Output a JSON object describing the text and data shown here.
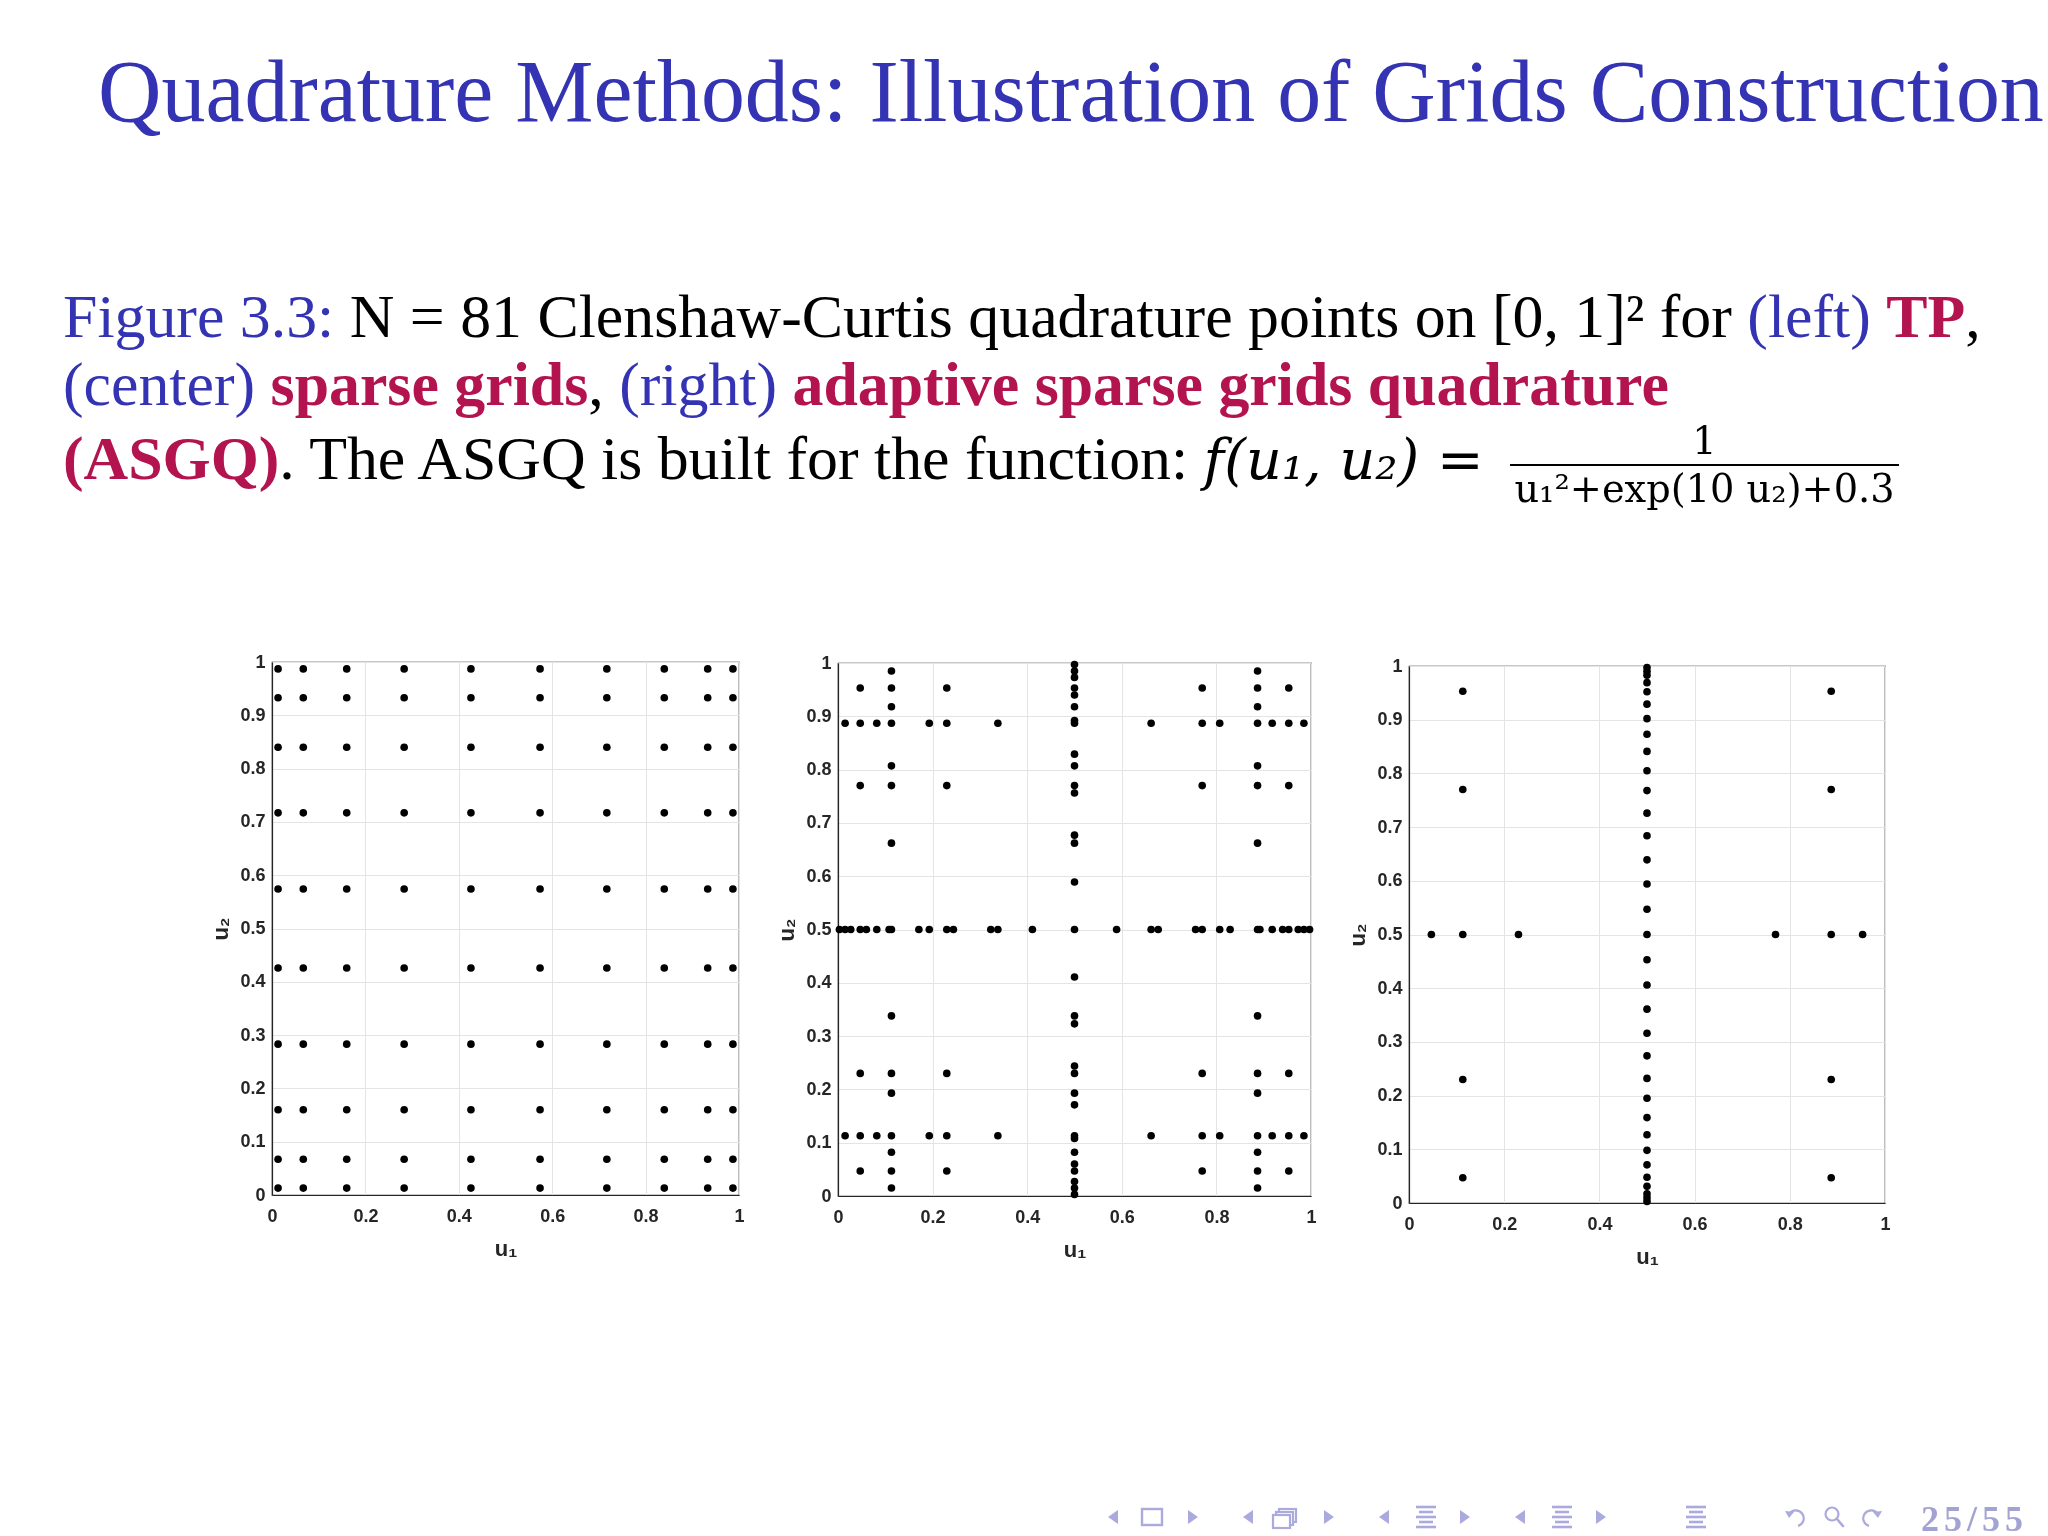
{
  "chart_data": [
    {
      "type": "other",
      "title": "Quadrature Methods: Illustration of Grids Construction",
      "annotations": [
        "Figure 3.3:",
        "N = 81 Clenshaw-Curtis quadrature points on [0, 1]² for",
        "(left)",
        "TP",
        ",",
        "(center)",
        "sparse grids",
        ",",
        "(right)",
        "adaptive sparse grids quadrature",
        "(ASGQ)",
        ". The ASGQ is built for the function:",
        "f(u₁, u₂) =",
        "1",
        "u₁²+exp(10 u₂)+0.3",
        "25/55"
      ]
    },
    {
      "type": "scatter",
      "color": "#000000",
      "marker": "circle",
      "xlabel": "u₁",
      "ylabel": "u₂",
      "xlim": [
        0,
        1
      ],
      "ylim": [
        0,
        1
      ],
      "xticks": [
        0,
        0.2,
        0.4,
        0.6,
        0.8,
        1
      ],
      "yticks": [
        0,
        0.1,
        0.2,
        0.3,
        0.4,
        0.5,
        0.6,
        0.7,
        0.8,
        0.9,
        1
      ],
      "grid": true,
      "x": [
        0.013,
        0.013,
        0.013,
        0.013,
        0.013,
        0.013,
        0.013,
        0.013,
        0.013,
        0.013,
        0.067,
        0.067,
        0.067,
        0.067,
        0.067,
        0.067,
        0.067,
        0.067,
        0.067,
        0.067,
        0.16,
        0.16,
        0.16,
        0.16,
        0.16,
        0.16,
        0.16,
        0.16,
        0.16,
        0.16,
        0.283,
        0.283,
        0.283,
        0.283,
        0.283,
        0.283,
        0.283,
        0.283,
        0.283,
        0.283,
        0.426,
        0.426,
        0.426,
        0.426,
        0.426,
        0.426,
        0.426,
        0.426,
        0.426,
        0.426,
        0.574,
        0.574,
        0.574,
        0.574,
        0.574,
        0.574,
        0.574,
        0.574,
        0.574,
        0.574,
        0.717,
        0.717,
        0.717,
        0.717,
        0.717,
        0.717,
        0.717,
        0.717,
        0.717,
        0.717,
        0.84,
        0.84,
        0.84,
        0.84,
        0.84,
        0.84,
        0.84,
        0.84,
        0.84,
        0.84,
        0.933,
        0.933,
        0.933,
        0.933,
        0.933,
        0.933,
        0.933,
        0.933,
        0.933,
        0.933,
        0.987,
        0.987,
        0.987,
        0.987,
        0.987,
        0.987,
        0.987,
        0.987,
        0.987,
        0.987
      ],
      "values": [
        0.013,
        0.067,
        0.16,
        0.283,
        0.426,
        0.574,
        0.717,
        0.84,
        0.933,
        0.987,
        0.013,
        0.067,
        0.16,
        0.283,
        0.426,
        0.574,
        0.717,
        0.84,
        0.933,
        0.987,
        0.013,
        0.067,
        0.16,
        0.283,
        0.426,
        0.574,
        0.717,
        0.84,
        0.933,
        0.987,
        0.013,
        0.067,
        0.16,
        0.283,
        0.426,
        0.574,
        0.717,
        0.84,
        0.933,
        0.987,
        0.013,
        0.067,
        0.16,
        0.283,
        0.426,
        0.574,
        0.717,
        0.84,
        0.933,
        0.987,
        0.013,
        0.067,
        0.16,
        0.283,
        0.426,
        0.574,
        0.717,
        0.84,
        0.933,
        0.987,
        0.013,
        0.067,
        0.16,
        0.283,
        0.426,
        0.574,
        0.717,
        0.84,
        0.933,
        0.987,
        0.013,
        0.067,
        0.16,
        0.283,
        0.426,
        0.574,
        0.717,
        0.84,
        0.933,
        0.987,
        0.013,
        0.067,
        0.16,
        0.283,
        0.426,
        0.574,
        0.717,
        0.84,
        0.933,
        0.987,
        0.013,
        0.067,
        0.16,
        0.283,
        0.426,
        0.574,
        0.717,
        0.84,
        0.933,
        0.987
      ]
    },
    {
      "type": "scatter",
      "color": "#000000",
      "marker": "circle",
      "xlabel": "u₁",
      "ylabel": "u₂",
      "xlim": [
        0,
        1
      ],
      "ylim": [
        0,
        1
      ],
      "xticks": [
        0,
        0.2,
        0.4,
        0.6,
        0.8,
        1
      ],
      "yticks": [
        0,
        0.1,
        0.2,
        0.3,
        0.4,
        0.5,
        0.6,
        0.7,
        0.8,
        0.9,
        1
      ],
      "grid": true,
      "x": [
        0.003,
        0.015,
        0.015,
        0.015,
        0.027,
        0.047,
        0.047,
        0.047,
        0.047,
        0.047,
        0.047,
        0.047,
        0.06,
        0.082,
        0.082,
        0.082,
        0.108,
        0.113,
        0.113,
        0.113,
        0.113,
        0.113,
        0.113,
        0.113,
        0.113,
        0.113,
        0.113,
        0.113,
        0.113,
        0.113,
        0.113,
        0.113,
        0.171,
        0.193,
        0.193,
        0.193,
        0.23,
        0.23,
        0.23,
        0.23,
        0.23,
        0.23,
        0.23,
        0.244,
        0.323,
        0.338,
        0.338,
        0.338,
        0.411,
        0.5,
        0.5,
        0.5,
        0.5,
        0.5,
        0.5,
        0.5,
        0.5,
        0.5,
        0.5,
        0.5,
        0.5,
        0.5,
        0.5,
        0.5,
        0.5,
        0.5,
        0.5,
        0.5,
        0.5,
        0.5,
        0.5,
        0.5,
        0.5,
        0.5,
        0.5,
        0.5,
        0.5,
        0.5,
        0.5,
        0.5,
        0.589,
        0.662,
        0.662,
        0.662,
        0.677,
        0.756,
        0.77,
        0.77,
        0.77,
        0.77,
        0.77,
        0.77,
        0.77,
        0.807,
        0.807,
        0.807,
        0.829,
        0.887,
        0.887,
        0.887,
        0.887,
        0.887,
        0.887,
        0.887,
        0.887,
        0.887,
        0.887,
        0.887,
        0.887,
        0.887,
        0.887,
        0.887,
        0.892,
        0.918,
        0.918,
        0.918,
        0.94,
        0.953,
        0.953,
        0.953,
        0.953,
        0.953,
        0.953,
        0.953,
        0.973,
        0.985,
        0.985,
        0.985,
        0.997
      ],
      "values": [
        0.5,
        0.113,
        0.5,
        0.887,
        0.5,
        0.047,
        0.113,
        0.23,
        0.5,
        0.77,
        0.887,
        0.953,
        0.5,
        0.113,
        0.5,
        0.887,
        0.5,
        0.015,
        0.047,
        0.082,
        0.113,
        0.193,
        0.23,
        0.338,
        0.5,
        0.662,
        0.77,
        0.807,
        0.887,
        0.918,
        0.953,
        0.985,
        0.5,
        0.113,
        0.5,
        0.887,
        0.047,
        0.113,
        0.23,
        0.5,
        0.77,
        0.887,
        0.953,
        0.5,
        0.5,
        0.113,
        0.5,
        0.887,
        0.5,
        0.003,
        0.015,
        0.027,
        0.047,
        0.06,
        0.082,
        0.108,
        0.113,
        0.171,
        0.193,
        0.23,
        0.244,
        0.323,
        0.338,
        0.411,
        0.5,
        0.589,
        0.662,
        0.677,
        0.756,
        0.77,
        0.807,
        0.829,
        0.887,
        0.892,
        0.918,
        0.94,
        0.953,
        0.973,
        0.985,
        0.997,
        0.5,
        0.113,
        0.5,
        0.887,
        0.5,
        0.5,
        0.047,
        0.113,
        0.23,
        0.5,
        0.77,
        0.887,
        0.953,
        0.113,
        0.5,
        0.887,
        0.5,
        0.015,
        0.047,
        0.082,
        0.113,
        0.193,
        0.23,
        0.338,
        0.5,
        0.662,
        0.77,
        0.807,
        0.887,
        0.918,
        0.953,
        0.985,
        0.5,
        0.113,
        0.5,
        0.887,
        0.5,
        0.047,
        0.113,
        0.23,
        0.5,
        0.77,
        0.887,
        0.953,
        0.5,
        0.113,
        0.5,
        0.887,
        0.5
      ]
    },
    {
      "type": "scatter",
      "color": "#000000",
      "marker": "circle",
      "xlabel": "u₁",
      "ylabel": "u₂",
      "xlim": [
        0,
        1
      ],
      "ylim": [
        0,
        1
      ],
      "xticks": [
        0,
        0.2,
        0.4,
        0.6,
        0.8,
        1
      ],
      "yticks": [
        0,
        0.1,
        0.2,
        0.3,
        0.4,
        0.5,
        0.6,
        0.7,
        0.8,
        0.9,
        1
      ],
      "grid": true,
      "x": [
        0.047,
        0.113,
        0.113,
        0.113,
        0.113,
        0.113,
        0.23,
        0.5,
        0.5,
        0.5,
        0.5,
        0.5,
        0.5,
        0.5,
        0.5,
        0.5,
        0.5,
        0.5,
        0.5,
        0.5,
        0.5,
        0.5,
        0.5,
        0.5,
        0.5,
        0.5,
        0.5,
        0.5,
        0.5,
        0.5,
        0.5,
        0.5,
        0.5,
        0.5,
        0.5,
        0.5,
        0.5,
        0.5,
        0.5,
        0.5,
        0.77,
        0.887,
        0.887,
        0.887,
        0.887,
        0.887,
        0.953
      ],
      "values": [
        0.5,
        0.047,
        0.23,
        0.5,
        0.77,
        0.953,
        0.5,
        0.003,
        0.01,
        0.017,
        0.031,
        0.048,
        0.071,
        0.098,
        0.127,
        0.159,
        0.195,
        0.232,
        0.274,
        0.316,
        0.361,
        0.406,
        0.453,
        0.5,
        0.547,
        0.594,
        0.639,
        0.684,
        0.726,
        0.768,
        0.805,
        0.841,
        0.873,
        0.902,
        0.929,
        0.952,
        0.969,
        0.983,
        0.99,
        0.997,
        0.5,
        0.047,
        0.23,
        0.5,
        0.77,
        0.953,
        0.5
      ]
    }
  ]
}
